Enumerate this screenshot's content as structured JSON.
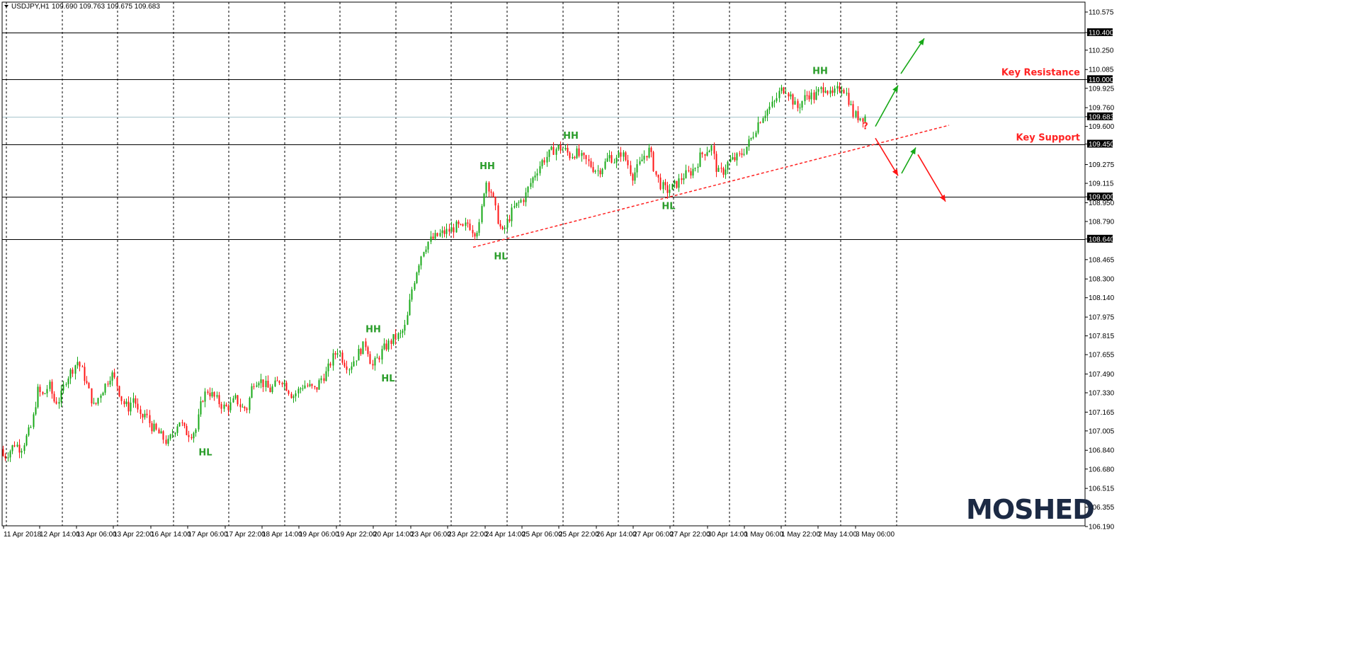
{
  "header": {
    "symbol": "USDJPY,H1",
    "ohlc": "109.690 109.763 109.675 109.683"
  },
  "logo": "MOSHED",
  "colors": {
    "bull": "#17a817",
    "bear": "#ff1414",
    "grid": "#000000",
    "bid_line": "#a8c4cc",
    "annotation_green": "#2a9d2a",
    "annotation_red": "#ff2222",
    "trendline": "#ff2222"
  },
  "chart_data": {
    "type": "candlestick",
    "title": "",
    "xlabel": "",
    "ylabel": "",
    "ylim": [
      106.19,
      110.66
    ],
    "x_ticks": [
      "11 Apr 2018",
      "12 Apr 14:00",
      "13 Apr 06:00",
      "13 Apr 22:00",
      "16 Apr 14:00",
      "17 Apr 06:00",
      "17 Apr 22:00",
      "18 Apr 14:00",
      "19 Apr 06:00",
      "19 Apr 22:00",
      "20 Apr 14:00",
      "23 Apr 06:00",
      "23 Apr 22:00",
      "24 Apr 14:00",
      "25 Apr 06:00",
      "25 Apr 22:00",
      "26 Apr 14:00",
      "27 Apr 06:00",
      "27 Apr 22:00",
      "30 Apr 14:00",
      "1 May 06:00",
      "1 May 22:00",
      "2 May 14:00",
      "3 May 06:00"
    ],
    "y_ticks": [
      "110.575",
      "110.400",
      "110.250",
      "110.085",
      "110.000",
      "109.925",
      "109.760",
      "109.683",
      "109.600",
      "109.450",
      "109.275",
      "109.115",
      "109.000",
      "108.950",
      "108.790",
      "108.640",
      "108.465",
      "108.300",
      "108.140",
      "107.975",
      "107.815",
      "107.655",
      "107.490",
      "107.330",
      "107.165",
      "107.005",
      "106.840",
      "106.680",
      "106.515",
      "106.355",
      "106.190"
    ],
    "highlight_ticks": [
      "110.400",
      "110.000",
      "109.683",
      "109.450",
      "109.000",
      "108.640"
    ],
    "current_price": 109.683,
    "levels": [
      {
        "value": 110.4,
        "label": ""
      },
      {
        "value": 110.0,
        "label": "Key Resistance"
      },
      {
        "value": 109.45,
        "label": "Key Support"
      },
      {
        "value": 109.0,
        "label": ""
      },
      {
        "value": 108.64,
        "label": ""
      }
    ],
    "price_path": [
      [
        0,
        106.92
      ],
      [
        8,
        106.78
      ],
      [
        16,
        106.83
      ],
      [
        24,
        106.9
      ],
      [
        32,
        106.85
      ],
      [
        40,
        106.95
      ],
      [
        48,
        107.05
      ],
      [
        56,
        107.35
      ],
      [
        64,
        107.3
      ],
      [
        72,
        107.4
      ],
      [
        80,
        107.25
      ],
      [
        88,
        107.28
      ],
      [
        96,
        107.45
      ],
      [
        104,
        107.52
      ],
      [
        112,
        107.6
      ],
      [
        120,
        107.5
      ],
      [
        128,
        107.35
      ],
      [
        136,
        107.2
      ],
      [
        144,
        107.32
      ],
      [
        152,
        107.4
      ],
      [
        160,
        107.5
      ],
      [
        168,
        107.4
      ],
      [
        176,
        107.25
      ],
      [
        184,
        107.2
      ],
      [
        192,
        107.3
      ],
      [
        200,
        107.1
      ],
      [
        208,
        107.15
      ],
      [
        216,
        107.05
      ],
      [
        224,
        107.0
      ],
      [
        232,
        106.95
      ],
      [
        240,
        106.9
      ],
      [
        248,
        107.0
      ],
      [
        256,
        107.1
      ],
      [
        264,
        107.0
      ],
      [
        272,
        106.98
      ],
      [
        280,
        107.02
      ],
      [
        288,
        107.28
      ],
      [
        296,
        107.35
      ],
      [
        304,
        107.3
      ],
      [
        312,
        107.25
      ],
      [
        320,
        107.2
      ],
      [
        328,
        107.22
      ],
      [
        336,
        107.28
      ],
      [
        344,
        107.2
      ],
      [
        352,
        107.2
      ],
      [
        360,
        107.42
      ],
      [
        368,
        107.45
      ],
      [
        376,
        107.4
      ],
      [
        384,
        107.35
      ],
      [
        392,
        107.4
      ],
      [
        400,
        107.45
      ],
      [
        408,
        107.38
      ],
      [
        416,
        107.3
      ],
      [
        424,
        107.35
      ],
      [
        432,
        107.4
      ],
      [
        440,
        107.38
      ],
      [
        448,
        107.35
      ],
      [
        456,
        107.45
      ],
      [
        464,
        107.5
      ],
      [
        472,
        107.62
      ],
      [
        480,
        107.7
      ],
      [
        488,
        107.6
      ],
      [
        496,
        107.55
      ],
      [
        504,
        107.62
      ],
      [
        512,
        107.7
      ],
      [
        520,
        107.75
      ],
      [
        528,
        107.55
      ],
      [
        536,
        107.62
      ],
      [
        544,
        107.7
      ],
      [
        552,
        107.75
      ],
      [
        560,
        107.8
      ],
      [
        568,
        107.82
      ],
      [
        576,
        107.9
      ],
      [
        584,
        108.2
      ],
      [
        592,
        108.4
      ],
      [
        600,
        108.55
      ],
      [
        608,
        108.62
      ],
      [
        616,
        108.65
      ],
      [
        624,
        108.68
      ],
      [
        632,
        108.7
      ],
      [
        640,
        108.72
      ],
      [
        648,
        108.75
      ],
      [
        656,
        108.72
      ],
      [
        664,
        108.78
      ],
      [
        672,
        108.7
      ],
      [
        680,
        108.75
      ],
      [
        688,
        109.15
      ],
      [
        696,
        109.05
      ],
      [
        704,
        108.85
      ],
      [
        712,
        108.68
      ],
      [
        720,
        108.8
      ],
      [
        728,
        108.9
      ],
      [
        736,
        108.95
      ],
      [
        744,
        109.0
      ],
      [
        752,
        109.12
      ],
      [
        760,
        109.22
      ],
      [
        768,
        109.3
      ],
      [
        776,
        109.35
      ],
      [
        784,
        109.4
      ],
      [
        792,
        109.42
      ],
      [
        800,
        109.4
      ],
      [
        808,
        109.35
      ],
      [
        816,
        109.38
      ],
      [
        824,
        109.33
      ],
      [
        832,
        109.3
      ],
      [
        840,
        109.25
      ],
      [
        848,
        109.22
      ],
      [
        856,
        109.28
      ],
      [
        864,
        109.35
      ],
      [
        872,
        109.3
      ],
      [
        880,
        109.38
      ],
      [
        888,
        109.3
      ],
      [
        896,
        109.18
      ],
      [
        904,
        109.25
      ],
      [
        912,
        109.35
      ],
      [
        920,
        109.4
      ],
      [
        928,
        109.2
      ],
      [
        936,
        109.1
      ],
      [
        944,
        109.05
      ],
      [
        952,
        109.08
      ],
      [
        960,
        109.12
      ],
      [
        968,
        109.18
      ],
      [
        976,
        109.2
      ],
      [
        984,
        109.25
      ],
      [
        992,
        109.35
      ],
      [
        1000,
        109.4
      ],
      [
        1008,
        109.42
      ],
      [
        1016,
        109.2
      ],
      [
        1024,
        109.22
      ],
      [
        1032,
        109.3
      ],
      [
        1040,
        109.32
      ],
      [
        1048,
        109.35
      ],
      [
        1056,
        109.42
      ],
      [
        1064,
        109.5
      ],
      [
        1072,
        109.62
      ],
      [
        1080,
        109.7
      ],
      [
        1088,
        109.75
      ],
      [
        1096,
        109.8
      ],
      [
        1104,
        109.9
      ],
      [
        1112,
        109.93
      ],
      [
        1120,
        109.85
      ],
      [
        1128,
        109.75
      ],
      [
        1136,
        109.82
      ],
      [
        1144,
        109.88
      ],
      [
        1152,
        109.85
      ],
      [
        1160,
        109.9
      ],
      [
        1168,
        109.95
      ],
      [
        1176,
        109.85
      ],
      [
        1184,
        109.9
      ],
      [
        1192,
        109.95
      ],
      [
        1200,
        109.85
      ],
      [
        1208,
        109.7
      ],
      [
        1216,
        109.68
      ],
      [
        1224,
        109.683
      ]
    ],
    "annotations": [
      {
        "label": "HL",
        "x": 290,
        "price": 106.82
      },
      {
        "label": "HH",
        "x": 527,
        "price": 107.87
      },
      {
        "label": "HL",
        "x": 548,
        "price": 107.45
      },
      {
        "label": "HH",
        "x": 688,
        "price": 109.26
      },
      {
        "label": "HL",
        "x": 707,
        "price": 108.49
      },
      {
        "label": "HH",
        "x": 806,
        "price": 109.52
      },
      {
        "label": "HL",
        "x": 944,
        "price": 108.92
      },
      {
        "label": "HH",
        "x": 1158,
        "price": 110.07
      },
      {
        "label": "?",
        "x": 1222,
        "price": 109.6
      }
    ],
    "trendline": {
      "from": [
        668,
        108.57
      ],
      "to": [
        1340,
        109.61
      ]
    },
    "scenario_arrows": [
      {
        "color": "bull",
        "from": [
          1236,
          109.6
        ],
        "to": [
          1268,
          109.95
        ]
      },
      {
        "color": "bull",
        "from": [
          1272,
          110.05
        ],
        "to": [
          1305,
          110.35
        ]
      },
      {
        "color": "bear",
        "from": [
          1236,
          109.5
        ],
        "to": [
          1268,
          109.18
        ]
      },
      {
        "color": "bull",
        "from": [
          1273,
          109.2
        ],
        "to": [
          1293,
          109.42
        ]
      },
      {
        "color": "bear",
        "from": [
          1296,
          109.36
        ],
        "to": [
          1335,
          108.96
        ]
      }
    ]
  }
}
